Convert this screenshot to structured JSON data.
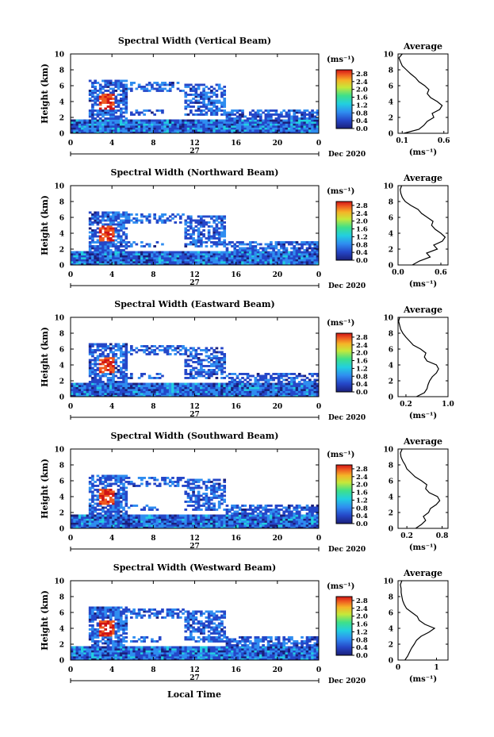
{
  "figure": {
    "xlabel_bottom": "Local Time",
    "date_label": "Dec 2020",
    "day_label": "27"
  },
  "chart_data": [
    {
      "type": "heatmap",
      "title": "Spectral Width (Vertical Beam)",
      "ylabel": "Height (km)",
      "xlim": [
        0,
        24
      ],
      "ylim": [
        0,
        10
      ],
      "xticks": [
        "0",
        "4",
        "8",
        "12",
        "16",
        "20",
        "0"
      ],
      "yticks": [
        "0",
        "2",
        "4",
        "6",
        "8",
        "10"
      ],
      "colorbar": {
        "unit": "(ms⁻¹)",
        "ticks": [
          "0.0",
          "0.4",
          "0.8",
          "1.2",
          "1.6",
          "2.0",
          "2.4",
          "2.8"
        ],
        "range": [
          0,
          3.0
        ]
      },
      "average": {
        "title": "Average",
        "xlabel": "(ms⁻¹)",
        "xticks": [
          "0.1",
          "0.6"
        ],
        "xlim": [
          0.05,
          0.65
        ],
        "height": [
          0,
          0.5,
          1,
          1.5,
          2,
          2.5,
          3,
          3.5,
          4,
          4.5,
          5,
          5.5,
          6,
          6.5,
          7,
          7.5,
          8,
          8.5,
          9,
          9.5,
          10
        ],
        "value": [
          0.12,
          0.3,
          0.36,
          0.4,
          0.48,
          0.46,
          0.55,
          0.58,
          0.52,
          0.44,
          0.4,
          0.42,
          0.37,
          0.3,
          0.26,
          0.2,
          0.15,
          0.1,
          0.08,
          0.06,
          0.1
        ]
      }
    },
    {
      "type": "heatmap",
      "title": "Spectral Width (Northward Beam)",
      "ylabel": "Height (km)",
      "xlim": [
        0,
        24
      ],
      "ylim": [
        0,
        10
      ],
      "xticks": [
        "0",
        "4",
        "8",
        "12",
        "16",
        "20",
        "0"
      ],
      "yticks": [
        "0",
        "2",
        "4",
        "6",
        "8",
        "10"
      ],
      "colorbar": {
        "unit": "(ms⁻¹)",
        "ticks": [
          "0.0",
          "0.4",
          "0.8",
          "1.2",
          "1.6",
          "2.0",
          "2.4",
          "2.8"
        ],
        "range": [
          0,
          3.0
        ]
      },
      "average": {
        "title": "Average",
        "xlabel": "(ms⁻¹)",
        "xticks": [
          "0.0",
          "0.6"
        ],
        "xlim": [
          0,
          0.7
        ],
        "height": [
          0,
          0.5,
          1,
          1.5,
          2,
          2.5,
          3,
          3.5,
          4,
          4.5,
          5,
          5.5,
          6,
          6.5,
          7,
          7.5,
          8,
          8.5,
          9,
          9.5,
          10
        ],
        "value": [
          0.2,
          0.3,
          0.45,
          0.4,
          0.55,
          0.5,
          0.62,
          0.66,
          0.6,
          0.52,
          0.47,
          0.49,
          0.41,
          0.33,
          0.28,
          0.18,
          0.1,
          0.06,
          0.04,
          0.03,
          0.05
        ]
      }
    },
    {
      "type": "heatmap",
      "title": "Spectral Width (Eastward Beam)",
      "ylabel": "Height (km)",
      "xlim": [
        0,
        24
      ],
      "ylim": [
        0,
        10
      ],
      "xticks": [
        "0",
        "4",
        "8",
        "12",
        "16",
        "20",
        "0"
      ],
      "yticks": [
        "0",
        "2",
        "4",
        "6",
        "8",
        "10"
      ],
      "colorbar": {
        "unit": "(ms⁻¹)",
        "ticks": [
          "0.0",
          "0.4",
          "0.8",
          "1.2",
          "1.6",
          "2.0",
          "2.4",
          "2.8"
        ],
        "range": [
          0,
          3.0
        ]
      },
      "average": {
        "title": "Average",
        "xlabel": "(ms⁻¹)",
        "xticks": [
          "0.2",
          "1.0"
        ],
        "xlim": [
          0.05,
          1.0
        ],
        "height": [
          0,
          0.5,
          1,
          1.5,
          2,
          2.5,
          3,
          3.5,
          4,
          4.5,
          5,
          5.5,
          6,
          6.5,
          7,
          7.5,
          8,
          8.5,
          9,
          9.5,
          10
        ],
        "value": [
          0.4,
          0.55,
          0.6,
          0.62,
          0.65,
          0.7,
          0.78,
          0.82,
          0.78,
          0.6,
          0.55,
          0.58,
          0.48,
          0.34,
          0.27,
          0.2,
          0.14,
          0.1,
          0.08,
          0.06,
          0.08
        ]
      }
    },
    {
      "type": "heatmap",
      "title": "Spectral Width (Southward Beam)",
      "ylabel": "Height (km)",
      "xlim": [
        0,
        24
      ],
      "ylim": [
        0,
        10
      ],
      "xticks": [
        "0",
        "4",
        "8",
        "12",
        "16",
        "20",
        "0"
      ],
      "yticks": [
        "0",
        "2",
        "4",
        "6",
        "8",
        "10"
      ],
      "colorbar": {
        "unit": "(ms⁻¹)",
        "ticks": [
          "0.0",
          "0.4",
          "0.8",
          "1.2",
          "1.6",
          "2.0",
          "2.4",
          "2.8"
        ],
        "range": [
          0,
          3.0
        ]
      },
      "average": {
        "title": "Average",
        "xlabel": "(ms⁻¹)",
        "xticks": [
          "0.2",
          "0.8"
        ],
        "xlim": [
          0.05,
          0.9
        ],
        "height": [
          0,
          0.5,
          1,
          1.5,
          2,
          2.5,
          3,
          3.5,
          4,
          4.5,
          5,
          5.5,
          6,
          6.5,
          7,
          7.5,
          8,
          8.5,
          9,
          9.5,
          10
        ],
        "value": [
          0.35,
          0.45,
          0.52,
          0.48,
          0.57,
          0.6,
          0.7,
          0.76,
          0.72,
          0.58,
          0.52,
          0.54,
          0.45,
          0.34,
          0.27,
          0.2,
          0.17,
          0.13,
          0.1,
          0.09,
          0.12
        ]
      }
    },
    {
      "type": "heatmap",
      "title": "Spectral Width (Westward Beam)",
      "ylabel": "Height (km)",
      "xlim": [
        0,
        24
      ],
      "ylim": [
        0,
        10
      ],
      "xticks": [
        "0",
        "4",
        "8",
        "12",
        "16",
        "20",
        "0"
      ],
      "yticks": [
        "0",
        "2",
        "4",
        "6",
        "8",
        "10"
      ],
      "colorbar": {
        "unit": "(ms⁻¹)",
        "ticks": [
          "0.0",
          "0.4",
          "0.8",
          "1.2",
          "1.6",
          "2.0",
          "2.4",
          "2.8"
        ],
        "range": [
          0,
          3.0
        ]
      },
      "average": {
        "title": "Average",
        "xlabel": "(ms⁻¹)",
        "xticks": [
          "0",
          "1"
        ],
        "xlim": [
          0,
          1.3
        ],
        "height": [
          0,
          0.5,
          1,
          1.5,
          2,
          2.5,
          3,
          3.5,
          4,
          4.5,
          5,
          5.5,
          6,
          6.5,
          7,
          7.5,
          8,
          8.5,
          9,
          9.5,
          10
        ],
        "value": [
          0.18,
          0.25,
          0.3,
          0.35,
          0.42,
          0.48,
          0.6,
          0.8,
          0.95,
          0.7,
          0.55,
          0.5,
          0.36,
          0.22,
          0.16,
          0.12,
          0.1,
          0.08,
          0.08,
          0.06,
          0.1
        ]
      }
    }
  ]
}
